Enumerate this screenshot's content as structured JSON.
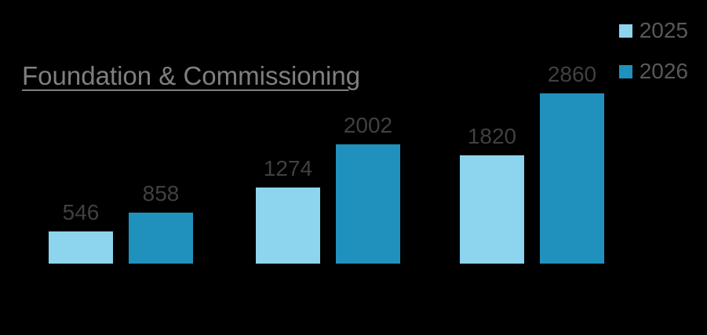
{
  "chart_data": {
    "type": "bar",
    "title": "Foundation & Commissioning",
    "xlabel": "",
    "ylabel": "",
    "axes_visible": false,
    "gridlines": false,
    "data_labels_visible": true,
    "legend_position": "top-right",
    "ylim": [
      0,
      2860
    ],
    "group_count": 3,
    "series": [
      {
        "name": "2025",
        "color": "#8DD4EE",
        "values": [
          546,
          1274,
          1820
        ]
      },
      {
        "name": "2026",
        "color": "#2091BD",
        "values": [
          858,
          2002,
          2860
        ]
      }
    ]
  },
  "colors": {
    "background": "#000000",
    "title_text": "#7F7F7F",
    "data_label_text": "#404040",
    "legend_text": "#595959",
    "series_2025": "#8DD4EE",
    "series_2026": "#2091BD"
  }
}
